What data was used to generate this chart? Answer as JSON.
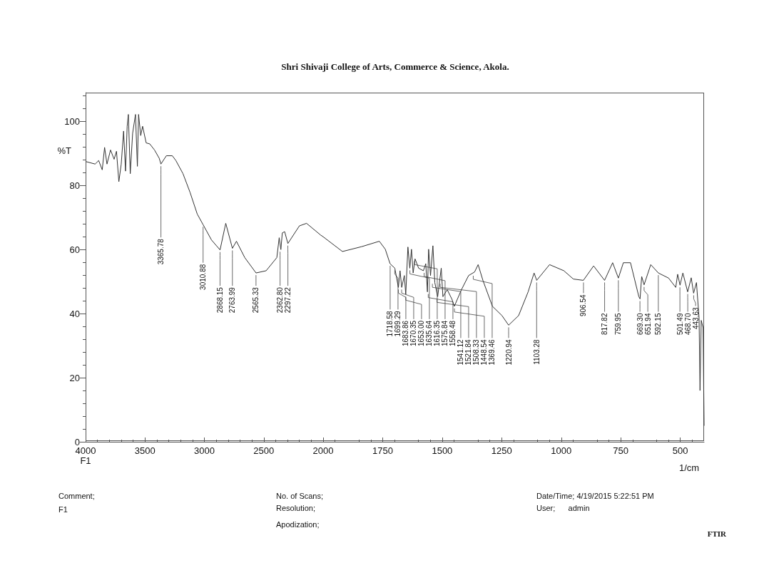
{
  "chart_data": [
    {
      "type": "line",
      "ylabel": "%T",
      "color": "#333333",
      "xlim": [
        4000,
        2000
      ],
      "xticks": [
        4000,
        3500,
        3000,
        2500,
        2000
      ],
      "ylim": [
        0,
        109
      ],
      "yticks": [
        0,
        20,
        40,
        60,
        80,
        100
      ],
      "x": [
        4000,
        3920,
        3890,
        3860,
        3840,
        3820,
        3790,
        3760,
        3740,
        3720,
        3700,
        3680,
        3664,
        3650,
        3640,
        3624,
        3604,
        3580,
        3564,
        3554,
        3536,
        3520,
        3490,
        3460,
        3420,
        3380,
        3366,
        3320,
        3270,
        3240,
        3180,
        3120,
        3060,
        3011,
        2940,
        2868,
        2820,
        2764,
        2730,
        2660,
        2565,
        2480,
        2390,
        2370,
        2356,
        2344,
        2324,
        2297,
        2200,
        2140,
        2020,
        2000
      ],
      "values": [
        87.5,
        86.7,
        87.8,
        84.9,
        91.9,
        86.7,
        91.1,
        88.2,
        90.7,
        81.2,
        86.7,
        97.0,
        84.5,
        98.5,
        102.2,
        83.7,
        96.3,
        102.2,
        86.0,
        102.2,
        95.6,
        98.5,
        93.3,
        93.0,
        91.1,
        88.5,
        86.7,
        89.3,
        89.3,
        87.8,
        83.7,
        77.8,
        71.1,
        67.8,
        63.0,
        59.9,
        68.2,
        60.4,
        62.6,
        57.5,
        52.7,
        53.4,
        57.5,
        63.7,
        60.0,
        65.2,
        65.6,
        61.9,
        67.4,
        68.2,
        64.5,
        64.0
      ],
      "annotations": [
        {
          "text": "3365.78",
          "x": 3365.78,
          "y": 86.7
        },
        {
          "text": "3010.88",
          "x": 3010.88,
          "y": 67.8
        },
        {
          "text": "2868.15",
          "x": 2868.15,
          "y": 59.9
        },
        {
          "text": "2763.99",
          "x": 2763.99,
          "y": 60.4
        },
        {
          "text": "2565.33",
          "x": 2565.33,
          "y": 52.7
        },
        {
          "text": "2362.80",
          "x": 2362.8,
          "y": 60.0
        },
        {
          "text": "2297.22",
          "x": 2297.22,
          "y": 61.9
        },
        "F1",
        "Comment;",
        "F1",
        "No. of Scans;",
        "Resolution;",
        "Apodization;",
        "Date/Time; 4/19/2015 5:22:51 PM",
        "User;      admin",
        "FTIR"
      ]
    },
    {
      "type": "line",
      "title": "Shri Shivaji College of Arts, Commerce & Science, Akola.",
      "xlabel": "1/cm",
      "color": "#333333",
      "tick_labels": "x",
      "xlim": [
        2000,
        400
      ],
      "xticks": [
        1750,
        1500,
        1250,
        1000,
        750,
        500
      ],
      "ylim": [
        0,
        109
      ],
      "yticks": [
        0,
        20,
        40,
        60,
        80,
        100
      ],
      "x": [
        2000,
        1919,
        1839,
        1764,
        1739,
        1719,
        1699,
        1684,
        1677,
        1670,
        1659,
        1653,
        1644,
        1636,
        1629,
        1622,
        1614,
        1599,
        1579,
        1569,
        1562,
        1557,
        1549,
        1539,
        1531,
        1519,
        1504,
        1497,
        1479,
        1459,
        1449,
        1419,
        1389,
        1364,
        1349,
        1329,
        1289,
        1249,
        1221,
        1179,
        1139,
        1114,
        1103,
        1049,
        989,
        949,
        907,
        864,
        818,
        784,
        760,
        739,
        709,
        674,
        669,
        662,
        652,
        624,
        592,
        549,
        519,
        511,
        501,
        489,
        469,
        454,
        444,
        432,
        421,
        417,
        412,
        404,
        400
      ],
      "values": [
        64.0,
        59.4,
        60.9,
        62.6,
        60.1,
        55.6,
        54.2,
        48.2,
        53.4,
        48.2,
        51.9,
        46.0,
        60.8,
        54.2,
        60.1,
        52.7,
        57.1,
        54.2,
        53.4,
        55.6,
        46.8,
        60.1,
        51.9,
        61.2,
        49.7,
        45.3,
        54.2,
        45.3,
        47.5,
        44.5,
        42.3,
        47.5,
        51.9,
        53.0,
        55.3,
        50.4,
        42.3,
        39.4,
        36.4,
        39.4,
        46.8,
        52.7,
        50.4,
        55.3,
        53.4,
        50.8,
        50.4,
        54.9,
        50.4,
        55.9,
        51.1,
        55.9,
        55.9,
        45.3,
        44.6,
        51.6,
        49.0,
        55.3,
        52.7,
        51.1,
        48.2,
        52.3,
        48.9,
        52.7,
        46.8,
        51.2,
        46.4,
        49.7,
        38.6,
        16.0,
        37.9,
        35.6,
        5.0
      ],
      "annotations": [
        {
          "text": "1718.58",
          "x": 1718.58,
          "y": 55.6
        },
        {
          "text": "1699.29",
          "x": 1699.29,
          "y": 54.2
        },
        {
          "text": "1683.86",
          "x": 1683.86,
          "y": 48.2
        },
        {
          "text": "1670.35",
          "x": 1670.35,
          "y": 48.2
        },
        {
          "text": "1653.00",
          "x": 1653.0,
          "y": 46.0
        },
        {
          "text": "1635.64",
          "x": 1635.64,
          "y": 54.2
        },
        {
          "text": "1616.35",
          "x": 1616.35,
          "y": 57.1
        },
        {
          "text": "1575.84",
          "x": 1575.84,
          "y": 53.4
        },
        {
          "text": "1558.48",
          "x": 1558.48,
          "y": 46.8
        },
        {
          "text": "1541.12",
          "x": 1541.12,
          "y": 50.0
        },
        {
          "text": "1521.84",
          "x": 1521.84,
          "y": 45.3
        },
        {
          "text": "1508.33",
          "x": 1508.33,
          "y": 50.0
        },
        {
          "text": "1448.54",
          "x": 1448.54,
          "y": 42.3
        },
        {
          "text": "1369.46",
          "x": 1369.46,
          "y": 52.5
        },
        {
          "text": "1220.94",
          "x": 1220.94,
          "y": 36.4
        },
        {
          "text": "1103.28",
          "x": 1103.28,
          "y": 50.4
        },
        {
          "text": "906.54",
          "x": 906.54,
          "y": 50.4
        },
        {
          "text": "817.82",
          "x": 817.82,
          "y": 50.4
        },
        {
          "text": "759.95",
          "x": 759.95,
          "y": 51.1
        },
        {
          "text": "669.30",
          "x": 669.3,
          "y": 44.6
        },
        {
          "text": "651.94",
          "x": 651.94,
          "y": 49.0
        },
        {
          "text": "592.15",
          "x": 592.15,
          "y": 52.7
        },
        {
          "text": "501.49",
          "x": 501.49,
          "y": 48.9
        },
        {
          "text": "468.70",
          "x": 468.7,
          "y": 46.8
        },
        {
          "text": "443.63",
          "x": 443.63,
          "y": 46.4
        }
      ]
    }
  ]
}
